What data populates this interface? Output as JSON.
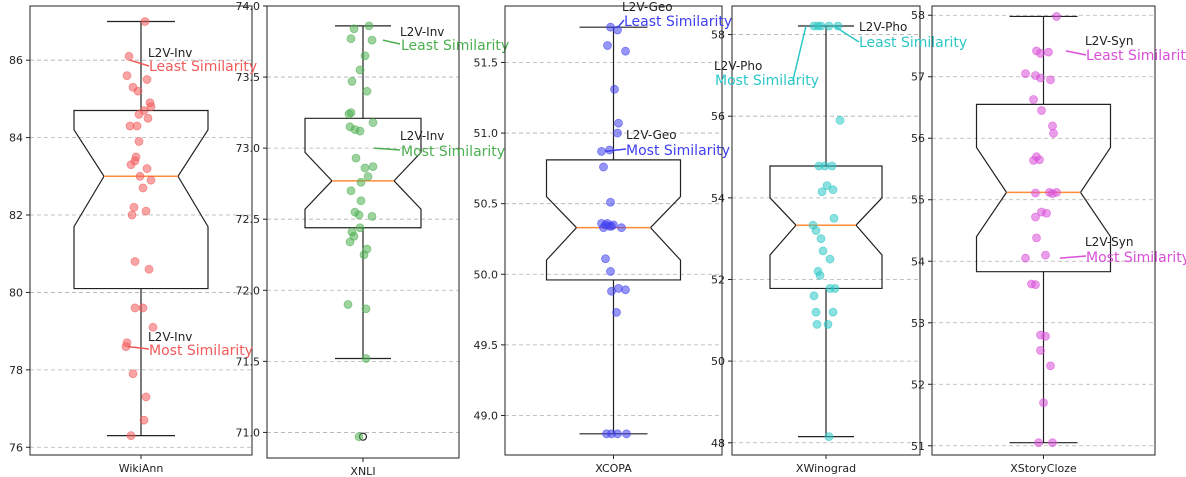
{
  "chart_data": [
    {
      "type": "box",
      "xlabel": "WikiAnn",
      "color": "#f25a5a",
      "ylim": [
        75.8,
        87.4
      ],
      "yticks": [
        76,
        78,
        80,
        82,
        84,
        86
      ],
      "ytick_labels": [
        "76",
        "78",
        "80",
        "82",
        "84",
        "86"
      ],
      "box": {
        "whisker_low": 76.3,
        "q1": 80.1,
        "median": 83.0,
        "q3": 84.7,
        "whisker_high": 87.0,
        "notch_low": 81.7,
        "notch_high": 84.2
      },
      "outliers": [],
      "points": [
        87.0,
        86.1,
        85.6,
        85.5,
        85.3,
        85.2,
        84.9,
        84.8,
        84.7,
        84.6,
        84.5,
        84.3,
        84.3,
        83.9,
        83.5,
        83.4,
        83.3,
        83.2,
        83.0,
        82.9,
        82.7,
        82.2,
        82.1,
        82.0,
        80.8,
        80.6,
        79.6,
        79.6,
        79.1,
        78.7,
        78.6,
        77.9,
        77.3,
        76.7,
        76.3
      ],
      "annotations": [
        {
          "label": "L2V-Inv",
          "text": "Least Similarity",
          "value": 86.0
        },
        {
          "label": "L2V-Inv",
          "text": "Most Similarity",
          "value": 78.6
        }
      ]
    },
    {
      "type": "box",
      "xlabel": "XNLI",
      "color": "#4caf50",
      "ylim": [
        70.82,
        74.0
      ],
      "yticks": [
        71.0,
        71.5,
        72.0,
        72.5,
        73.0,
        73.5,
        74.0
      ],
      "ytick_labels": [
        "71.0",
        "71.5",
        "72.0",
        "72.5",
        "73.0",
        "73.5",
        "74.0"
      ],
      "box": {
        "whisker_low": 71.52,
        "q1": 72.44,
        "median": 72.77,
        "q3": 73.21,
        "whisker_high": 73.86,
        "notch_low": 72.57,
        "notch_high": 72.97
      },
      "outliers": [
        70.97
      ],
      "points": [
        73.86,
        73.84,
        73.77,
        73.76,
        73.65,
        73.55,
        73.47,
        73.4,
        73.25,
        73.24,
        73.18,
        73.15,
        73.13,
        73.12,
        72.93,
        72.87,
        72.86,
        72.8,
        72.76,
        72.7,
        72.63,
        72.55,
        72.53,
        72.52,
        72.44,
        72.41,
        72.38,
        72.34,
        72.29,
        72.25,
        71.9,
        71.87,
        71.52,
        70.97
      ],
      "annotations": [
        {
          "label": "L2V-Inv",
          "text": "Least Similarity",
          "value": 73.76
        },
        {
          "label": "L2V-Inv",
          "text": "Most Similarity",
          "value": 73.0
        }
      ]
    },
    {
      "type": "box",
      "xlabel": "XCOPA",
      "color": "#4040f0",
      "ylim": [
        48.72,
        51.9
      ],
      "yticks": [
        49.0,
        49.5,
        50.0,
        50.5,
        51.0,
        51.5
      ],
      "ytick_labels": [
        "49.0",
        "49.5",
        "50.0",
        "50.5",
        "51.0",
        "51.5"
      ],
      "box": {
        "whisker_low": 48.87,
        "q1": 49.96,
        "median": 50.33,
        "q3": 50.81,
        "whisker_high": 51.75,
        "notch_low": 50.1,
        "notch_high": 50.55
      },
      "outliers": [],
      "points": [
        51.75,
        51.73,
        51.62,
        51.58,
        51.31,
        51.07,
        51.0,
        50.88,
        50.87,
        50.76,
        50.51,
        50.36,
        50.36,
        50.35,
        50.35,
        50.34,
        50.34,
        50.33,
        50.33,
        50.11,
        50.02,
        49.9,
        49.89,
        49.88,
        49.73,
        48.87,
        48.87,
        48.87,
        48.87
      ],
      "annotations": [
        {
          "label": "L2V-Geo",
          "text": "Least Similarity",
          "value": 51.75
        },
        {
          "label": "L2V-Geo",
          "text": "Most Similarity",
          "value": 50.87
        }
      ]
    },
    {
      "type": "box",
      "xlabel": "XWinograd",
      "color": "#2cc7c7",
      "ylim": [
        47.7,
        58.7
      ],
      "yticks": [
        48,
        50,
        52,
        54,
        56,
        58
      ],
      "ytick_labels": [
        "48",
        "50",
        "52",
        "54",
        "56",
        "58"
      ],
      "box": {
        "whisker_low": 48.15,
        "q1": 51.78,
        "median": 53.33,
        "q3": 54.78,
        "whisker_high": 58.21,
        "notch_low": 52.6,
        "notch_high": 54.0
      },
      "outliers": [],
      "points": [
        58.21,
        58.21,
        58.21,
        58.21,
        58.21,
        55.9,
        54.78,
        54.78,
        54.78,
        54.3,
        54.2,
        54.15,
        53.5,
        53.33,
        53.2,
        53.0,
        52.7,
        52.5,
        52.2,
        52.1,
        51.78,
        51.78,
        51.6,
        51.2,
        51.2,
        50.9,
        50.9,
        48.15
      ],
      "annotations": [
        {
          "label": "L2V-Pho",
          "text": "Least Similarity",
          "value": 58.21
        },
        {
          "label": "L2V-Pho",
          "text": "Most Similarity",
          "value": 58.21
        }
      ]
    },
    {
      "type": "box",
      "xlabel": "XStoryCloze",
      "color": "#d94fd9",
      "ylim": [
        50.85,
        58.15
      ],
      "yticks": [
        51,
        52,
        53,
        54,
        55,
        56,
        57,
        58
      ],
      "ytick_labels": [
        "51",
        "52",
        "53",
        "54",
        "55",
        "56",
        "57",
        "58"
      ],
      "box": {
        "whisker_low": 51.05,
        "q1": 53.83,
        "median": 55.12,
        "q3": 56.55,
        "whisker_high": 57.98,
        "notch_low": 54.4,
        "notch_high": 55.85
      },
      "outliers": [],
      "points": [
        57.98,
        57.42,
        57.4,
        57.38,
        57.05,
        57.02,
        56.98,
        56.95,
        56.63,
        56.45,
        56.2,
        56.08,
        55.7,
        55.65,
        55.64,
        55.12,
        55.12,
        55.11,
        55.1,
        54.8,
        54.78,
        54.72,
        54.38,
        54.1,
        54.05,
        53.63,
        53.62,
        52.8,
        52.78,
        52.55,
        52.3,
        51.7,
        51.05,
        51.05
      ],
      "annotations": [
        {
          "label": "L2V-Syn",
          "text": "Least Similarity",
          "value": 57.42
        },
        {
          "label": "L2V-Syn",
          "text": "Most Similarity",
          "value": 54.05
        }
      ]
    }
  ]
}
